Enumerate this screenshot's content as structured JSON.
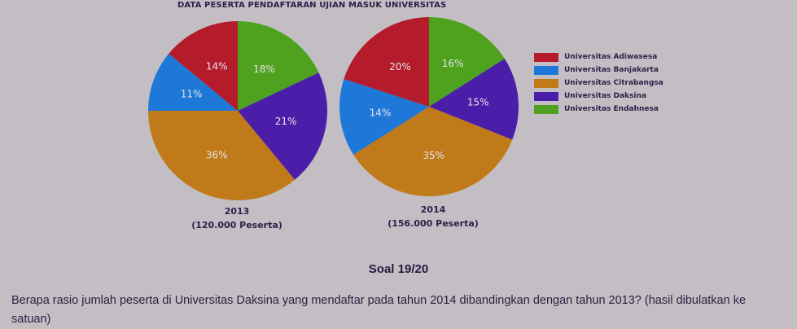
{
  "title": "DATA PESERTA PENDAFTARAN UJIAN MASUK UNIVERSITAS",
  "legend": [
    {
      "label": "Universitas Adiwasesa",
      "color": "#b41c2c"
    },
    {
      "label": "Universitas Banjakarta",
      "color": "#1e78d8"
    },
    {
      "label": "Universitas Citrabangsa",
      "color": "#c07a1a"
    },
    {
      "label": "Universitas Daksina",
      "color": "#4a1ea8"
    },
    {
      "label": "Universitas Endahnesa",
      "color": "#4ea21e"
    }
  ],
  "pies": [
    {
      "year": "2013",
      "participants": "(120.000 Peserta)"
    },
    {
      "year": "2014",
      "participants": "(156.000 Peserta)"
    }
  ],
  "question": {
    "number": "Soal 19/20",
    "text": "Berapa rasio jumlah peserta di Universitas Daksina yang mendaftar pada tahun 2014 dibandingkan dengan tahun 2013? (hasil dibulatkan ke satuan)"
  },
  "chart_data": [
    {
      "type": "pie",
      "title": "2013 (120.000 Peserta)",
      "categories": [
        "Universitas Adiwasesa",
        "Universitas Banjakarta",
        "Universitas Citrabangsa",
        "Universitas Daksina",
        "Universitas Endahnesa"
      ],
      "values": [
        14,
        11,
        36,
        21,
        18
      ],
      "labels": [
        "14%",
        "11%",
        "36%",
        "21%",
        "18%"
      ],
      "total": 120000,
      "legend_position": "right"
    },
    {
      "type": "pie",
      "title": "2014 (156.000 Peserta)",
      "categories": [
        "Universitas Adiwasesa",
        "Universitas Banjakarta",
        "Universitas Citrabangsa",
        "Universitas Daksina",
        "Universitas Endahnesa"
      ],
      "values": [
        20,
        14,
        35,
        15,
        16
      ],
      "labels": [
        "20%",
        "14%",
        "35%",
        "15%",
        "16%"
      ],
      "total": 156000,
      "legend_position": "right"
    }
  ]
}
